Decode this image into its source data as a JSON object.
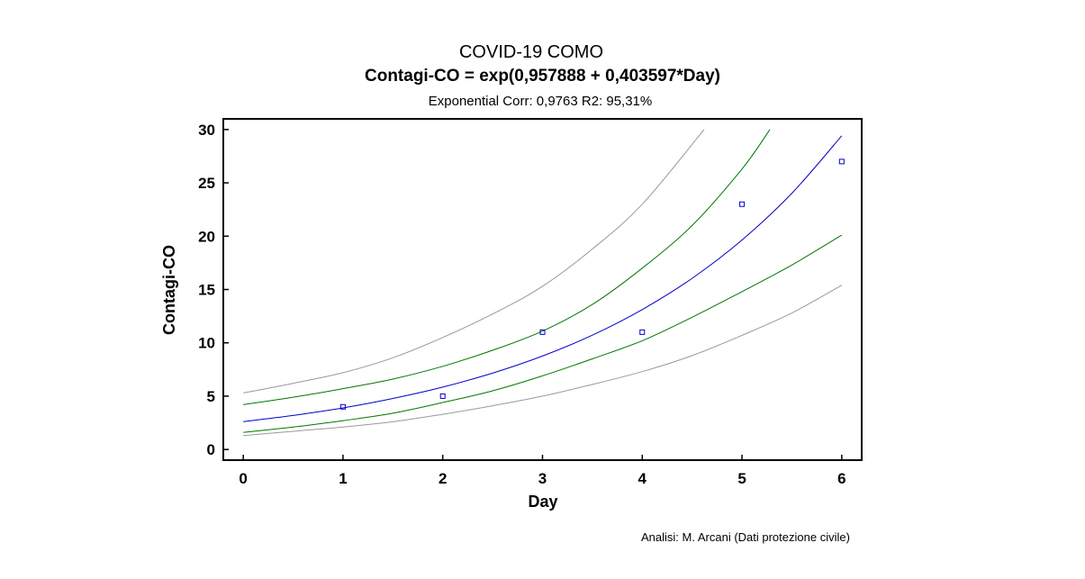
{
  "chart_data": {
    "type": "scatter",
    "title": "COVID-19 COMO",
    "subtitle": "Contagi-CO = exp(0,957888 + 0,403597*Day)",
    "annotation": "Exponential  Corr: 0,9763 R2: 95,31%",
    "credit": "Analisi: M. Arcani (Dati protezione civile)",
    "xlabel": "Day",
    "ylabel": "Contagi-CO",
    "xlim": [
      -0.2,
      6.2
    ],
    "ylim": [
      -1,
      31
    ],
    "xticks": [
      0,
      1,
      2,
      3,
      4,
      5,
      6
    ],
    "yticks": [
      0,
      5,
      10,
      15,
      20,
      25,
      30
    ],
    "grid": false,
    "series": [
      {
        "kind": "points",
        "color": "#0000cc",
        "points": [
          [
            1,
            4
          ],
          [
            2,
            5
          ],
          [
            3,
            11
          ],
          [
            4,
            11
          ],
          [
            5,
            23
          ],
          [
            6,
            27
          ]
        ]
      },
      {
        "kind": "fit",
        "color": "#0000cc",
        "x": [
          0,
          0.5,
          1,
          1.5,
          2,
          2.5,
          3,
          3.5,
          4,
          4.5,
          5,
          5.5,
          6
        ],
        "values": [
          2.61,
          3.19,
          3.9,
          4.78,
          5.85,
          7.16,
          8.76,
          10.72,
          13.12,
          16.05,
          19.64,
          24.03,
          29.41
        ]
      },
      {
        "kind": "confidence-upper",
        "color": "#007700",
        "x": [
          0,
          0.5,
          1,
          1.5,
          2,
          2.5,
          3,
          3.5,
          4,
          4.5,
          5,
          5.28
        ],
        "values": [
          4.2,
          4.9,
          5.7,
          6.6,
          7.8,
          9.3,
          11.1,
          13.6,
          17.0,
          21.0,
          26.3,
          30
        ]
      },
      {
        "kind": "confidence-lower",
        "color": "#007700",
        "x": [
          0,
          0.5,
          1,
          1.5,
          2,
          2.5,
          3,
          3.5,
          4,
          4.5,
          5,
          5.5,
          6
        ],
        "values": [
          1.6,
          2.1,
          2.7,
          3.4,
          4.4,
          5.5,
          6.9,
          8.5,
          10.2,
          12.4,
          14.8,
          17.3,
          20.1
        ]
      },
      {
        "kind": "prediction-upper",
        "color": "#999999",
        "x": [
          0,
          0.5,
          1,
          1.5,
          2,
          2.5,
          3,
          3.5,
          4,
          4.62
        ],
        "values": [
          5.3,
          6.2,
          7.2,
          8.6,
          10.5,
          12.7,
          15.3,
          18.8,
          23.0,
          30
        ]
      },
      {
        "kind": "prediction-lower",
        "color": "#999999",
        "x": [
          0,
          0.5,
          1,
          1.5,
          2,
          2.5,
          3,
          3.5,
          4,
          4.5,
          5,
          5.5,
          6
        ],
        "values": [
          1.3,
          1.7,
          2.1,
          2.6,
          3.3,
          4.1,
          5.0,
          6.1,
          7.3,
          8.8,
          10.7,
          12.8,
          15.4
        ]
      }
    ]
  }
}
